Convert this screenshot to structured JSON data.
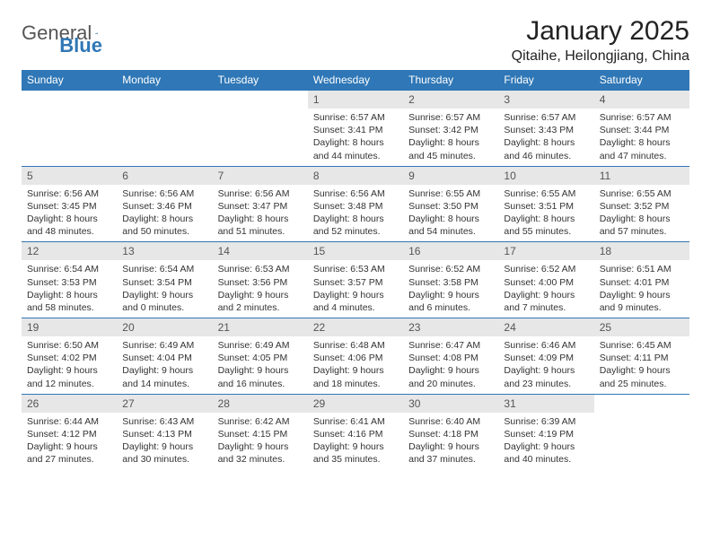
{
  "logo": {
    "text1": "General",
    "text2": "Blue"
  },
  "title": "January 2025",
  "subtitle": "Qitaihe, Heilongjiang, China",
  "colors": {
    "header_bg": "#2f77b6",
    "header_text": "#ffffff",
    "daynum_bg": "#e7e7e7",
    "week_border": "#2f77b6",
    "body_text": "#333333"
  },
  "headers": [
    "Sunday",
    "Monday",
    "Tuesday",
    "Wednesday",
    "Thursday",
    "Friday",
    "Saturday"
  ],
  "weeks": [
    [
      null,
      null,
      null,
      {
        "n": "1",
        "sr": "6:57 AM",
        "ss": "3:41 PM",
        "dl": "8 hours and 44 minutes."
      },
      {
        "n": "2",
        "sr": "6:57 AM",
        "ss": "3:42 PM",
        "dl": "8 hours and 45 minutes."
      },
      {
        "n": "3",
        "sr": "6:57 AM",
        "ss": "3:43 PM",
        "dl": "8 hours and 46 minutes."
      },
      {
        "n": "4",
        "sr": "6:57 AM",
        "ss": "3:44 PM",
        "dl": "8 hours and 47 minutes."
      }
    ],
    [
      {
        "n": "5",
        "sr": "6:56 AM",
        "ss": "3:45 PM",
        "dl": "8 hours and 48 minutes."
      },
      {
        "n": "6",
        "sr": "6:56 AM",
        "ss": "3:46 PM",
        "dl": "8 hours and 50 minutes."
      },
      {
        "n": "7",
        "sr": "6:56 AM",
        "ss": "3:47 PM",
        "dl": "8 hours and 51 minutes."
      },
      {
        "n": "8",
        "sr": "6:56 AM",
        "ss": "3:48 PM",
        "dl": "8 hours and 52 minutes."
      },
      {
        "n": "9",
        "sr": "6:55 AM",
        "ss": "3:50 PM",
        "dl": "8 hours and 54 minutes."
      },
      {
        "n": "10",
        "sr": "6:55 AM",
        "ss": "3:51 PM",
        "dl": "8 hours and 55 minutes."
      },
      {
        "n": "11",
        "sr": "6:55 AM",
        "ss": "3:52 PM",
        "dl": "8 hours and 57 minutes."
      }
    ],
    [
      {
        "n": "12",
        "sr": "6:54 AM",
        "ss": "3:53 PM",
        "dl": "8 hours and 58 minutes."
      },
      {
        "n": "13",
        "sr": "6:54 AM",
        "ss": "3:54 PM",
        "dl": "9 hours and 0 minutes."
      },
      {
        "n": "14",
        "sr": "6:53 AM",
        "ss": "3:56 PM",
        "dl": "9 hours and 2 minutes."
      },
      {
        "n": "15",
        "sr": "6:53 AM",
        "ss": "3:57 PM",
        "dl": "9 hours and 4 minutes."
      },
      {
        "n": "16",
        "sr": "6:52 AM",
        "ss": "3:58 PM",
        "dl": "9 hours and 6 minutes."
      },
      {
        "n": "17",
        "sr": "6:52 AM",
        "ss": "4:00 PM",
        "dl": "9 hours and 7 minutes."
      },
      {
        "n": "18",
        "sr": "6:51 AM",
        "ss": "4:01 PM",
        "dl": "9 hours and 9 minutes."
      }
    ],
    [
      {
        "n": "19",
        "sr": "6:50 AM",
        "ss": "4:02 PM",
        "dl": "9 hours and 12 minutes."
      },
      {
        "n": "20",
        "sr": "6:49 AM",
        "ss": "4:04 PM",
        "dl": "9 hours and 14 minutes."
      },
      {
        "n": "21",
        "sr": "6:49 AM",
        "ss": "4:05 PM",
        "dl": "9 hours and 16 minutes."
      },
      {
        "n": "22",
        "sr": "6:48 AM",
        "ss": "4:06 PM",
        "dl": "9 hours and 18 minutes."
      },
      {
        "n": "23",
        "sr": "6:47 AM",
        "ss": "4:08 PM",
        "dl": "9 hours and 20 minutes."
      },
      {
        "n": "24",
        "sr": "6:46 AM",
        "ss": "4:09 PM",
        "dl": "9 hours and 23 minutes."
      },
      {
        "n": "25",
        "sr": "6:45 AM",
        "ss": "4:11 PM",
        "dl": "9 hours and 25 minutes."
      }
    ],
    [
      {
        "n": "26",
        "sr": "6:44 AM",
        "ss": "4:12 PM",
        "dl": "9 hours and 27 minutes."
      },
      {
        "n": "27",
        "sr": "6:43 AM",
        "ss": "4:13 PM",
        "dl": "9 hours and 30 minutes."
      },
      {
        "n": "28",
        "sr": "6:42 AM",
        "ss": "4:15 PM",
        "dl": "9 hours and 32 minutes."
      },
      {
        "n": "29",
        "sr": "6:41 AM",
        "ss": "4:16 PM",
        "dl": "9 hours and 35 minutes."
      },
      {
        "n": "30",
        "sr": "6:40 AM",
        "ss": "4:18 PM",
        "dl": "9 hours and 37 minutes."
      },
      {
        "n": "31",
        "sr": "6:39 AM",
        "ss": "4:19 PM",
        "dl": "9 hours and 40 minutes."
      },
      null
    ]
  ],
  "labels": {
    "sunrise": "Sunrise: ",
    "sunset": "Sunset: ",
    "daylight": "Daylight: "
  }
}
